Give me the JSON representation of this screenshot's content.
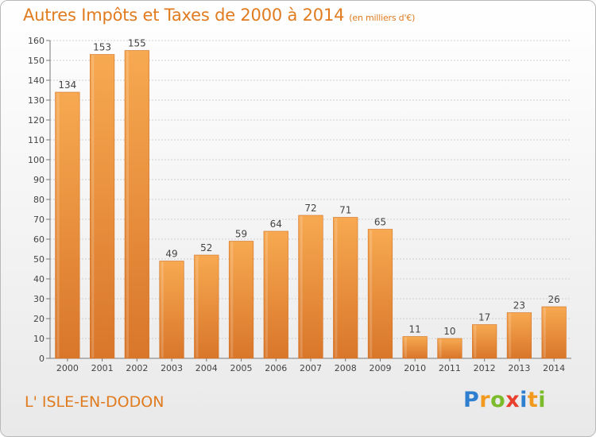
{
  "title": {
    "main": "Autres Impôts et Taxes de 2000 à 2014",
    "unit": "(en milliers d'€)"
  },
  "commune": "L' ISLE-EN-DODON",
  "brand": {
    "letters": [
      "P",
      "r",
      "o",
      "x",
      "i",
      "t",
      "i"
    ],
    "colors": [
      "#2f7fd0",
      "#f29a1e",
      "#7cbb2b",
      "#e8402d",
      "#2f7fd0",
      "#f29a1e",
      "#7cbb2b"
    ]
  },
  "chart_data": {
    "type": "bar",
    "title": "Autres Impôts et Taxes de 2000 à 2014",
    "xlabel": "",
    "ylabel": "",
    "categories": [
      "2000",
      "2001",
      "2002",
      "2003",
      "2004",
      "2005",
      "2006",
      "2007",
      "2008",
      "2009",
      "2010",
      "2011",
      "2012",
      "2013",
      "2014"
    ],
    "values": [
      134,
      153,
      155,
      49,
      52,
      59,
      64,
      72,
      71,
      65,
      11,
      10,
      17,
      23,
      26
    ],
    "ylim": [
      0,
      160
    ],
    "yticks": [
      0,
      10,
      20,
      30,
      40,
      50,
      60,
      70,
      80,
      90,
      100,
      110,
      120,
      130,
      140,
      150,
      160
    ],
    "grid": true,
    "bar_color": "#f29a45",
    "bar_color_light": "#f7a951",
    "bar_color_dark": "#d9762a"
  }
}
